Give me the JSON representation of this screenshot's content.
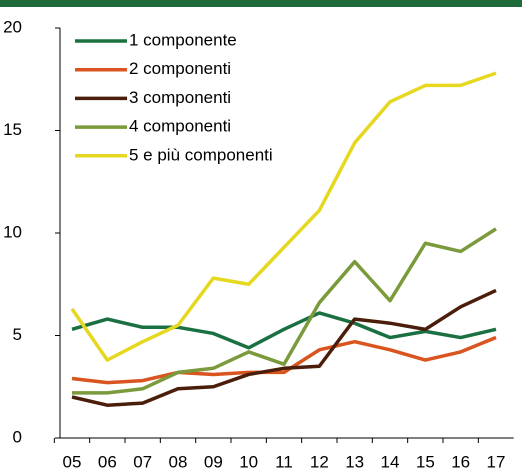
{
  "chart_data": {
    "type": "line",
    "categories": [
      "05",
      "06",
      "07",
      "08",
      "09",
      "10",
      "11",
      "12",
      "13",
      "14",
      "15",
      "16",
      "17"
    ],
    "series": [
      {
        "name": "1 componente",
        "color": "#1a7040",
        "values": [
          5.3,
          5.8,
          5.4,
          5.4,
          5.1,
          4.4,
          5.3,
          6.1,
          5.6,
          4.9,
          5.2,
          4.9,
          5.3
        ]
      },
      {
        "name": "2 componenti",
        "color": "#d9541e",
        "values": [
          2.9,
          2.7,
          2.8,
          3.2,
          3.1,
          3.2,
          3.2,
          4.3,
          4.7,
          4.3,
          3.8,
          4.2,
          4.9
        ]
      },
      {
        "name": "3 componenti",
        "color": "#4a1e0a",
        "values": [
          2.0,
          1.6,
          1.7,
          2.4,
          2.5,
          3.1,
          3.4,
          3.5,
          5.8,
          5.6,
          5.3,
          6.4,
          7.2
        ]
      },
      {
        "name": "4 componenti",
        "color": "#7a9a3c",
        "values": [
          2.2,
          2.2,
          2.4,
          3.2,
          3.4,
          4.2,
          3.6,
          6.6,
          8.6,
          6.7,
          9.5,
          9.1,
          10.2
        ]
      },
      {
        "name": "5 e più componenti",
        "color": "#e6d820",
        "values": [
          6.3,
          3.8,
          4.7,
          5.5,
          7.8,
          7.5,
          9.3,
          11.1,
          14.4,
          16.4,
          17.2,
          17.2,
          17.8
        ]
      }
    ],
    "ylim": [
      0,
      20
    ],
    "yticks": [
      0,
      5,
      10,
      15,
      20
    ],
    "legend": "upper left"
  }
}
